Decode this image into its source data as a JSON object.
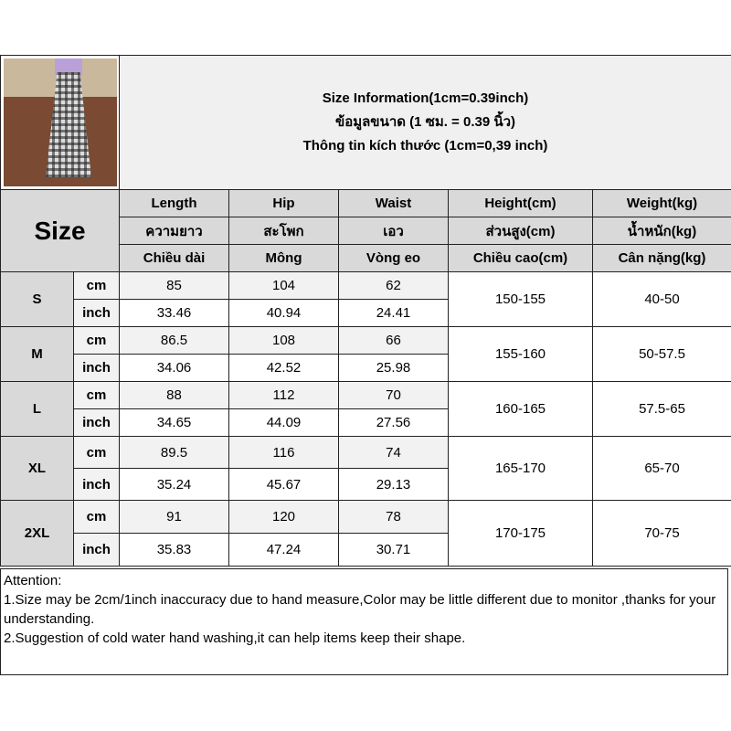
{
  "title_lines": [
    "Size Information(1cm=0.39inch)",
    "ข้อมูลขนาด (1 ซม. = 0.39 นิ้ว)",
    "Thông tin kích thước (1cm=0,39 inch)"
  ],
  "size_label": "Size",
  "columns": [
    {
      "en": "Length",
      "th": "ความยาว",
      "vi": "Chiều dài"
    },
    {
      "en": "Hip",
      "th": "สะโพก",
      "vi": "Mông"
    },
    {
      "en": "Waist",
      "th": "เอว",
      "vi": "Vòng eo"
    },
    {
      "en": "Height(cm)",
      "th": "ส่วนสูง(cm)",
      "vi": "Chiều cao(cm)"
    },
    {
      "en": "Weight(kg)",
      "th": "น้ำหนัก(kg)",
      "vi": "Cân nặng(kg)"
    }
  ],
  "units": {
    "cm": "cm",
    "inch": "inch"
  },
  "rows": [
    {
      "size": "S",
      "cm": [
        "85",
        "104",
        "62"
      ],
      "inch": [
        "33.46",
        "40.94",
        "24.41"
      ],
      "height": "150-155",
      "weight": "40-50"
    },
    {
      "size": "M",
      "cm": [
        "86.5",
        "108",
        "66"
      ],
      "inch": [
        "34.06",
        "42.52",
        "25.98"
      ],
      "height": "155-160",
      "weight": "50-57.5"
    },
    {
      "size": "L",
      "cm": [
        "88",
        "112",
        "70"
      ],
      "inch": [
        "34.65",
        "44.09",
        "27.56"
      ],
      "height": "160-165",
      "weight": "57.5-65"
    },
    {
      "size": "XL",
      "cm": [
        "89.5",
        "116",
        "74"
      ],
      "inch": [
        "35.24",
        "45.67",
        "29.13"
      ],
      "height": "165-170",
      "weight": "65-70"
    },
    {
      "size": "2XL",
      "cm": [
        "91",
        "120",
        "78"
      ],
      "inch": [
        "35.83",
        "47.24",
        "30.71"
      ],
      "height": "170-175",
      "weight": "70-75"
    }
  ],
  "attention": {
    "heading": "Attention:",
    "notes": [
      "1.Size may be 2cm/1inch inaccuracy due to hand measure,Color may be little different due to monitor ,thanks for your understanding.",
      "2.Suggestion of cold water hand washing,it can help items keep their shape."
    ]
  }
}
